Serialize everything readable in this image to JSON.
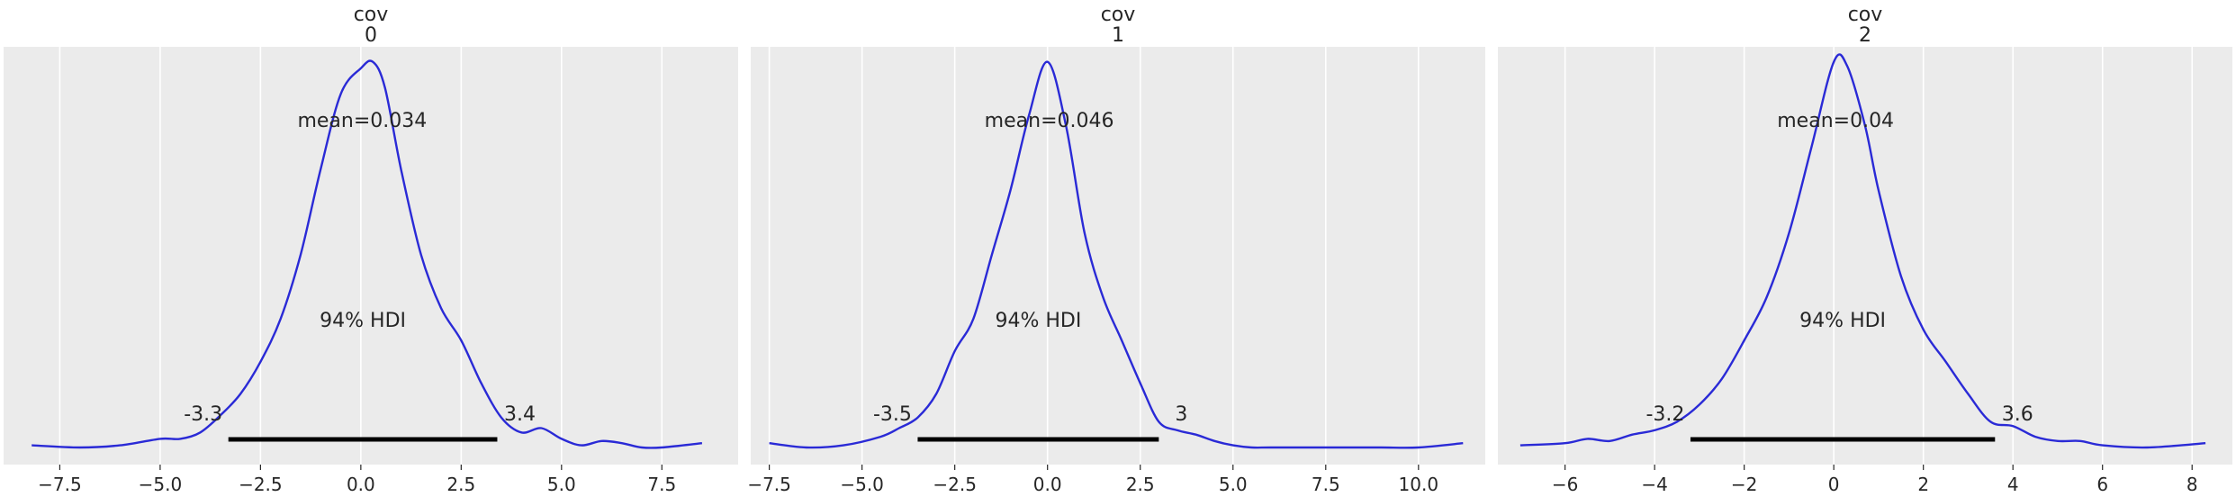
{
  "colors": {
    "background": "#ffffff",
    "panel_background": "#ebebeb",
    "grid": "#ffffff",
    "density_line": "#2a2ad6",
    "hdi_bar": "#000000",
    "text": "#262626"
  },
  "chart_data": [
    {
      "type": "line",
      "title": "cov\n0",
      "title_lines": [
        "cov",
        "0"
      ],
      "xlabel": "",
      "ylabel": "",
      "xlim": [
        -8.9,
        9.4
      ],
      "ylim": [
        -0.008,
        0.187
      ],
      "xticks": [
        -7.5,
        -5.0,
        -2.5,
        0.0,
        2.5,
        5.0,
        7.5
      ],
      "xtick_labels": [
        "−7.5",
        "−5.0",
        "−2.5",
        "0.0",
        "2.5",
        "5.0",
        "7.5"
      ],
      "grid": true,
      "mean": 0.034,
      "mean_label": "mean=0.034",
      "hdi_prob_label": "94% HDI",
      "hdi": [
        -3.3,
        3.4
      ],
      "hdi_labels": [
        "-3.3",
        "3.4"
      ],
      "series": [
        {
          "x": [
            -8.2,
            -7.0,
            -6.0,
            -5.0,
            -4.5,
            -4.0,
            -3.5,
            -3.0,
            -2.5,
            -2.0,
            -1.5,
            -1.0,
            -0.5,
            0.0,
            0.3,
            0.6,
            1.0,
            1.5,
            2.0,
            2.5,
            3.0,
            3.5,
            4.0,
            4.5,
            5.0,
            5.5,
            6.0,
            6.5,
            7.0,
            7.5,
            8.5
          ],
          "y": [
            0.001,
            0.0,
            0.001,
            0.004,
            0.004,
            0.007,
            0.015,
            0.025,
            0.04,
            0.06,
            0.09,
            0.13,
            0.165,
            0.177,
            0.18,
            0.168,
            0.13,
            0.09,
            0.065,
            0.05,
            0.03,
            0.014,
            0.007,
            0.009,
            0.004,
            0.001,
            0.003,
            0.002,
            0.0,
            0.0,
            0.002
          ]
        }
      ]
    },
    {
      "type": "line",
      "title": "cov\n1",
      "title_lines": [
        "cov",
        "1"
      ],
      "xlabel": "",
      "ylabel": "",
      "xlim": [
        -8.0,
        11.8
      ],
      "ylim": [
        -0.008,
        0.187
      ],
      "xticks": [
        -7.5,
        -5.0,
        -2.5,
        0.0,
        2.5,
        5.0,
        7.5,
        10.0
      ],
      "xtick_labels": [
        "−7.5",
        "−5.0",
        "−2.5",
        "0.0",
        "2.5",
        "5.0",
        "7.5",
        "10.0"
      ],
      "grid": true,
      "mean": 0.046,
      "mean_label": "mean=0.046",
      "hdi_prob_label": "94% HDI",
      "hdi": [
        -3.5,
        3.0
      ],
      "hdi_labels": [
        "-3.5",
        "3"
      ],
      "series": [
        {
          "x": [
            -7.5,
            -6.5,
            -5.5,
            -4.5,
            -4.0,
            -3.5,
            -3.0,
            -2.5,
            -2.0,
            -1.5,
            -1.0,
            -0.5,
            0.0,
            0.5,
            1.0,
            1.5,
            2.0,
            2.5,
            3.0,
            3.5,
            4.0,
            4.5,
            5.0,
            5.5,
            6.0,
            7.0,
            8.0,
            9.0,
            10.0,
            11.2
          ],
          "y": [
            0.002,
            0.0,
            0.001,
            0.005,
            0.009,
            0.014,
            0.025,
            0.045,
            0.06,
            0.09,
            0.12,
            0.155,
            0.18,
            0.15,
            0.1,
            0.07,
            0.05,
            0.03,
            0.012,
            0.008,
            0.006,
            0.003,
            0.001,
            0.0,
            0.0,
            0.0,
            0.0,
            0.0,
            0.0,
            0.002
          ]
        }
      ]
    },
    {
      "type": "line",
      "title": "cov\n2",
      "title_lines": [
        "cov",
        "2"
      ],
      "xlabel": "",
      "ylabel": "",
      "xlim": [
        -7.5,
        8.9
      ],
      "ylim": [
        -0.008,
        0.187
      ],
      "xticks": [
        -6,
        -4,
        -2,
        0,
        2,
        4,
        6,
        8
      ],
      "xtick_labels": [
        "−6",
        "−4",
        "−2",
        "0",
        "2",
        "4",
        "6",
        "8"
      ],
      "grid": true,
      "mean": 0.04,
      "mean_label": "mean=0.04",
      "hdi_prob_label": "94% HDI",
      "hdi": [
        -3.2,
        3.6
      ],
      "hdi_labels": [
        "-3.2",
        "3.6"
      ],
      "series": [
        {
          "x": [
            -7.0,
            -6.0,
            -5.5,
            -5.0,
            -4.5,
            -4.0,
            -3.5,
            -3.0,
            -2.5,
            -2.0,
            -1.5,
            -1.0,
            -0.5,
            0.0,
            0.3,
            0.7,
            1.0,
            1.5,
            2.0,
            2.5,
            3.0,
            3.5,
            4.0,
            4.5,
            5.0,
            5.5,
            6.0,
            7.0,
            8.3
          ],
          "y": [
            0.001,
            0.002,
            0.004,
            0.003,
            0.006,
            0.008,
            0.012,
            0.02,
            0.032,
            0.05,
            0.07,
            0.1,
            0.14,
            0.18,
            0.178,
            0.15,
            0.12,
            0.08,
            0.055,
            0.04,
            0.025,
            0.012,
            0.01,
            0.005,
            0.003,
            0.003,
            0.001,
            0.0,
            0.002
          ]
        }
      ]
    }
  ]
}
